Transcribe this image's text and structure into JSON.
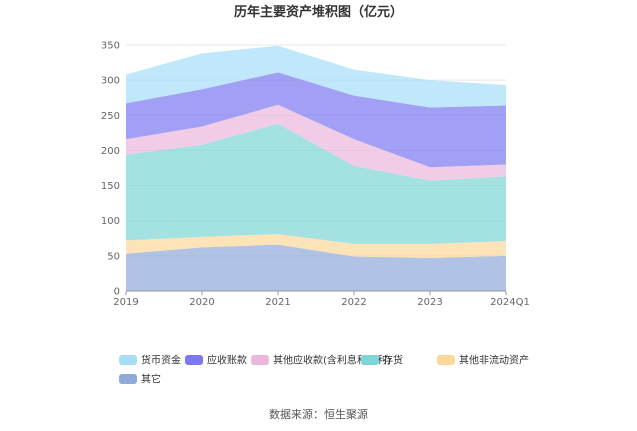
{
  "chart_data": {
    "type": "area",
    "stacked": true,
    "title": "历年主要资产堆积图（亿元）",
    "categories": [
      "2019",
      "2020",
      "2021",
      "2022",
      "2023",
      "2024Q1"
    ],
    "y_ticks": [
      "0",
      "50",
      "100",
      "150",
      "200",
      "250",
      "300",
      "350"
    ],
    "ylim": [
      0,
      350
    ],
    "grid": true,
    "legend_position": "bottom",
    "series": [
      {
        "name": "其它",
        "color": "#8eaad8",
        "values": [
          53,
          62,
          66,
          49,
          47,
          50
        ]
      },
      {
        "name": "其他非流动资产",
        "color": "#fcd79a",
        "values": [
          19,
          15,
          15,
          18,
          20,
          21
        ]
      },
      {
        "name": "存货",
        "color": "#7dd6d6",
        "values": [
          122,
          131,
          157,
          111,
          90,
          92
        ]
      },
      {
        "name": "其他应收款(含利息和股利)",
        "color": "#ebb6dc",
        "values": [
          22,
          26,
          27,
          38,
          19,
          17
        ]
      },
      {
        "name": "应收账款",
        "color": "#7b78f0",
        "values": [
          51,
          53,
          46,
          62,
          85,
          84
        ]
      },
      {
        "name": "货币资金",
        "color": "#a6def8",
        "values": [
          41,
          51,
          38,
          37,
          39,
          29
        ]
      }
    ],
    "legend_order": [
      "货币资金",
      "应收账款",
      "其他应收款(含利息和股利)",
      "存货",
      "其他非流动资产",
      "其它"
    ]
  },
  "footer": {
    "source": "数据来源：恒生聚源"
  }
}
